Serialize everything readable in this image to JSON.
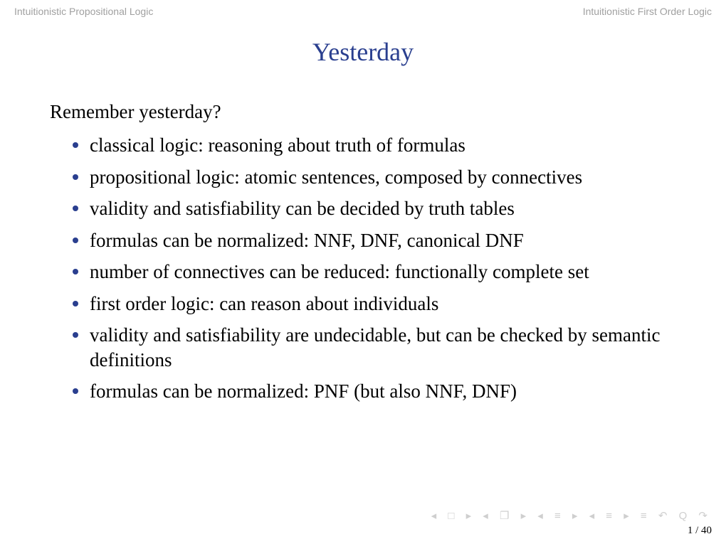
{
  "header": {
    "left": "Intuitionistic Propositional Logic",
    "right": "Intuitionistic First Order Logic"
  },
  "title": "Yesterday",
  "lead": "Remember yesterday?",
  "bullets": [
    "classical logic: reasoning about truth of formulas",
    "propositional logic: atomic sentences, composed by connectives",
    "validity and satisfiability can be decided by truth tables",
    "formulas can be normalized: NNF, DNF, canonical DNF",
    "number of connectives can be reduced: functionally complete set",
    "first order logic: can reason about individuals",
    "validity and satisfiability are undecidable, but can be checked by semantic definitions",
    "formulas can be normalized: PNF (but also NNF, DNF)"
  ],
  "nav_icons": "◂ □ ▸   ◂ ❐ ▸   ◂ ≡ ▸   ◂ ≡ ▸    ≡    ↶ Q ↷",
  "page": "1 / 40",
  "colors": {
    "title_color": "#2a3f8f",
    "bullet_color": "#2a3f8f",
    "header_color": "#a0a0a0",
    "nav_icon_color": "#cfcfcf",
    "background": "#ffffff",
    "body_text": "#000000"
  },
  "typography": {
    "title_fontsize": 36,
    "body_fontsize": 27,
    "header_fontsize": 14,
    "footer_fontsize": 15
  }
}
